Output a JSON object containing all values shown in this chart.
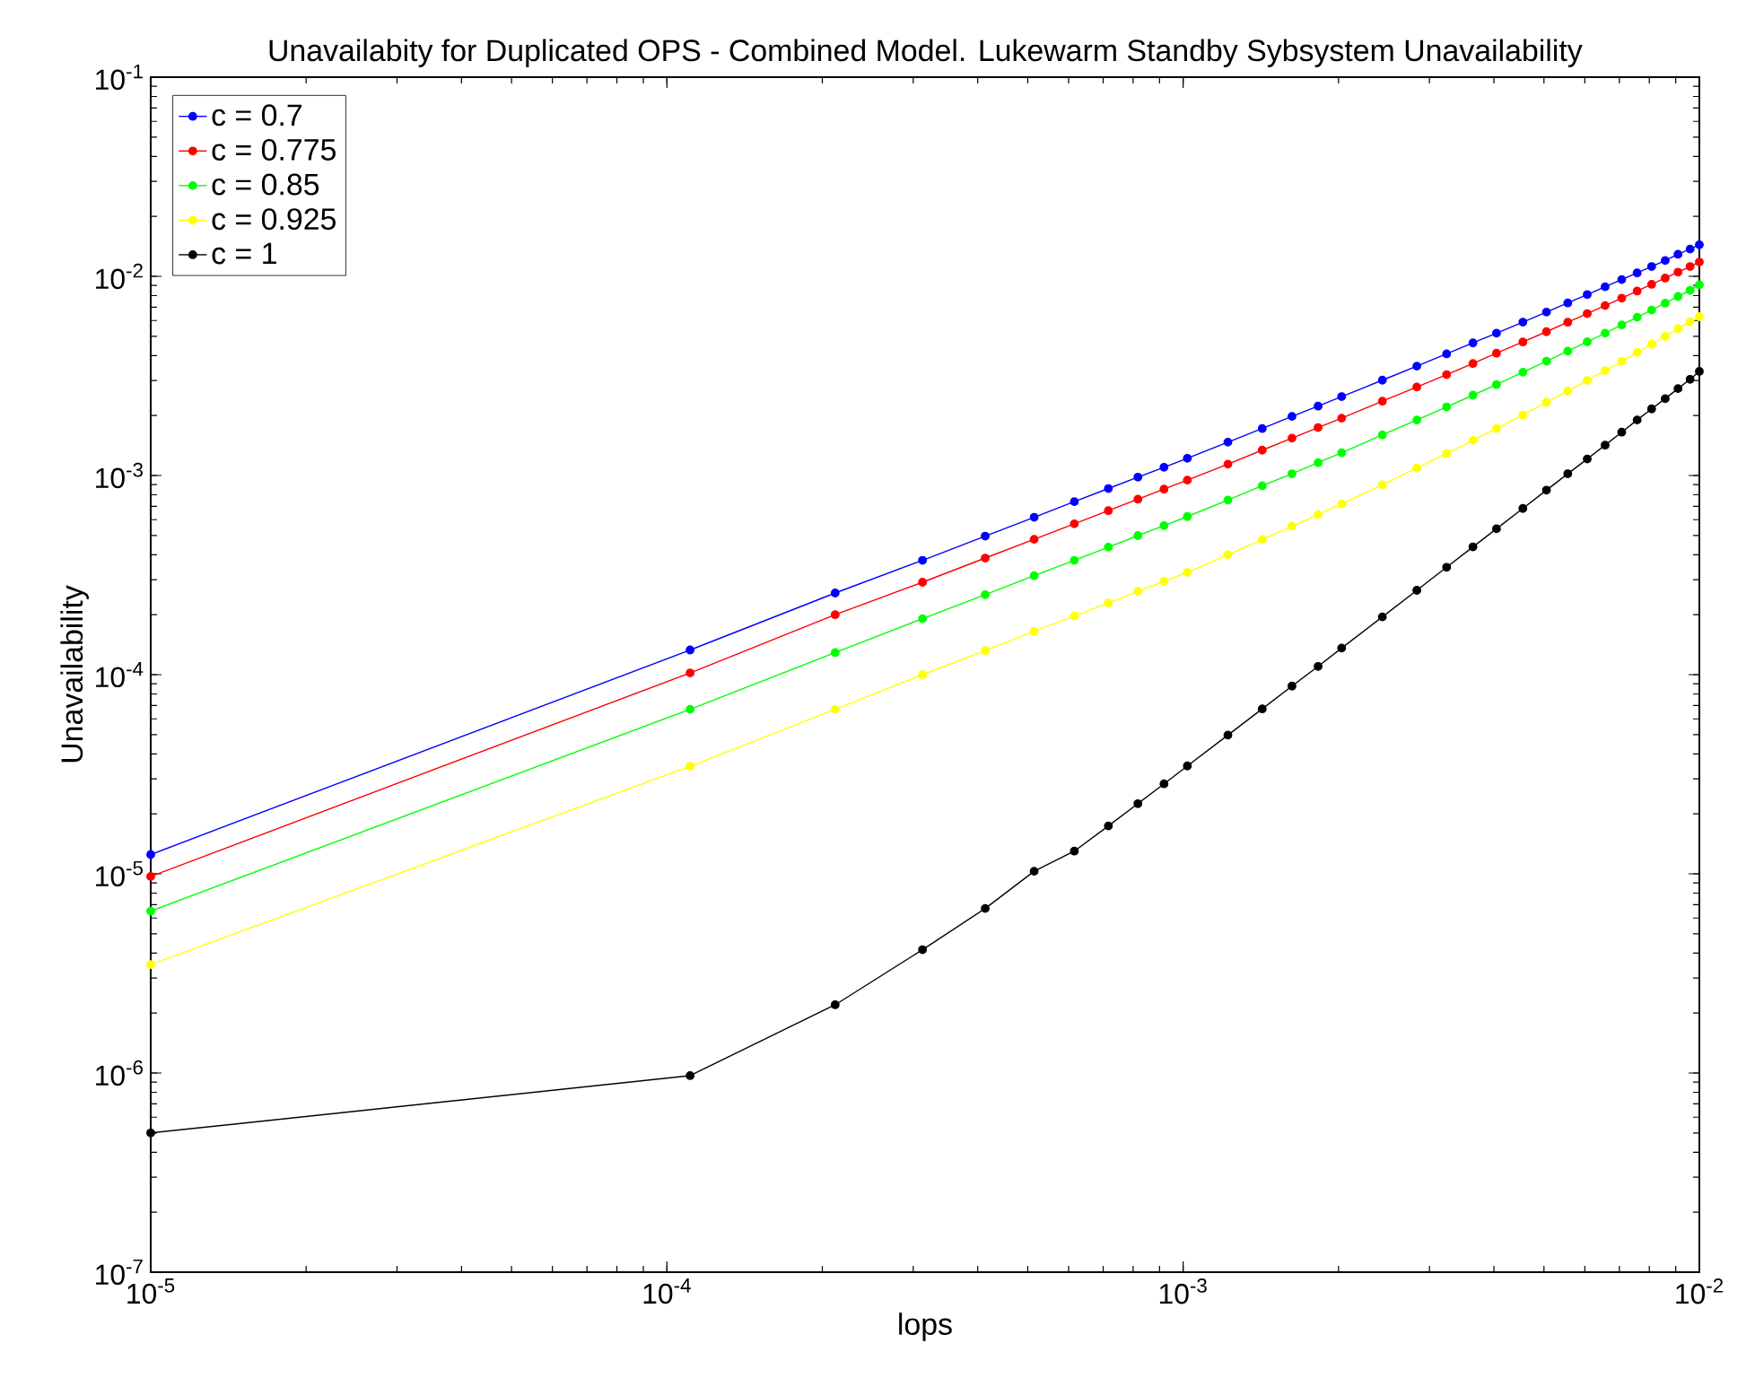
{
  "chart_data": {
    "type": "line",
    "title": "Unavailabity for Duplicated OPS - Combined Model. Lukewarm Standby Sybsystem Unavailability",
    "xlabel": "lops",
    "ylabel": "Unavailability",
    "log": "xy",
    "legend": "top left",
    "marker": "circle",
    "line_style": "solid",
    "xlim": [
      1e-05,
      0.01
    ],
    "ylim": [
      1e-07,
      0.1
    ],
    "xticks": [
      {
        "value": 1e-05,
        "label": "10$^{-5}$"
      },
      {
        "value": 0.0001,
        "label": "10$^{-4}$"
      },
      {
        "value": 0.001,
        "label": "10$^{-3}$"
      },
      {
        "value": 0.01,
        "label": "10$^{-2}$"
      }
    ],
    "yticks": [
      {
        "value": 1e-07,
        "label": "10$^{-7}$"
      },
      {
        "value": 1e-06,
        "label": "10$^{-6}$"
      },
      {
        "value": 1e-05,
        "label": "10$^{-5}$"
      },
      {
        "value": 0.0001,
        "label": "10$^{-4}$"
      },
      {
        "value": 0.001,
        "label": "10$^{-3}$"
      },
      {
        "value": 0.01,
        "label": "10$^{-2}$"
      },
      {
        "value": 0.1,
        "label": "10$^{-1}$"
      }
    ],
    "x": [
      1e-05,
      0.0001109,
      0.0002118,
      0.0003127,
      0.0004136,
      0.0005145,
      0.0006155,
      0.0007164,
      0.0008173,
      0.0009182,
      0.001019,
      0.001221,
      0.001423,
      0.001625,
      0.001826,
      0.002028,
      0.002432,
      0.002836,
      0.003239,
      0.003643,
      0.004046,
      0.004551,
      0.005056,
      0.00556,
      0.006065,
      0.006569,
      0.007074,
      0.007578,
      0.008083,
      0.008587,
      0.009092,
      0.009596,
      0.01
    ],
    "series": [
      {
        "name": "c = 0.7",
        "color": "#0000ff",
        "values": [
          1.25e-05,
          0.000133,
          0.000257,
          0.000375,
          0.000496,
          0.000617,
          0.000739,
          0.00086,
          0.000981,
          0.0011,
          0.00122,
          0.00147,
          0.00172,
          0.00198,
          0.00223,
          0.00249,
          0.00301,
          0.00354,
          0.00408,
          0.00463,
          0.00518,
          0.00589,
          0.00661,
          0.00735,
          0.0081,
          0.00886,
          0.00963,
          0.0104,
          0.0112,
          0.012,
          0.0129,
          0.0137,
          0.0144
        ]
      },
      {
        "name": "c = 0.775",
        "color": "#ff0000",
        "values": [
          9.7e-06,
          0.000102,
          0.0002,
          0.000291,
          0.000385,
          0.000478,
          0.000572,
          0.000666,
          0.00076,
          0.000854,
          0.000948,
          0.00114,
          0.00134,
          0.00154,
          0.00174,
          0.00194,
          0.00236,
          0.00278,
          0.00321,
          0.00365,
          0.00411,
          0.00468,
          0.00527,
          0.00588,
          0.0065,
          0.00713,
          0.00777,
          0.00843,
          0.00911,
          0.0098,
          0.0105,
          0.0112,
          0.0118
        ]
      },
      {
        "name": "c = 0.85",
        "color": "#00ff00",
        "values": [
          6.5e-06,
          6.7e-05,
          0.000129,
          0.000191,
          0.000252,
          0.000314,
          0.000375,
          0.000437,
          0.000499,
          0.00056,
          0.000622,
          0.000753,
          0.000888,
          0.00102,
          0.00116,
          0.0013,
          0.0016,
          0.0019,
          0.00221,
          0.00253,
          0.00286,
          0.0033,
          0.00375,
          0.00421,
          0.00469,
          0.00518,
          0.0057,
          0.00623,
          0.00677,
          0.00733,
          0.00792,
          0.00851,
          0.00906
        ]
      },
      {
        "name": "c = 0.925",
        "color": "#ffff00",
        "values": [
          3.5e-06,
          3.47e-05,
          6.7e-05,
          0.0001,
          0.000132,
          0.000165,
          0.000197,
          0.000229,
          0.000262,
          0.000294,
          0.000326,
          0.0004,
          0.000477,
          0.000556,
          0.000636,
          0.00072,
          0.000897,
          0.00109,
          0.00129,
          0.0015,
          0.00172,
          0.00201,
          0.00233,
          0.00265,
          0.003,
          0.00336,
          0.00374,
          0.00415,
          0.00456,
          0.00499,
          0.00545,
          0.00591,
          0.00627
        ]
      },
      {
        "name": "c = 1",
        "color": "#000000",
        "values": [
          5e-07,
          9.7e-07,
          2.2e-06,
          4.16e-06,
          6.7e-06,
          1.03e-05,
          1.3e-05,
          1.74e-05,
          2.25e-05,
          2.83e-05,
          3.48e-05,
          4.97e-05,
          6.73e-05,
          8.76e-05,
          0.00011,
          0.000136,
          0.000195,
          0.000265,
          0.000346,
          0.000438,
          0.00054,
          0.000683,
          0.000844,
          0.00102,
          0.00121,
          0.00142,
          0.00165,
          0.0019,
          0.00216,
          0.00243,
          0.00273,
          0.00304,
          0.00333
        ]
      }
    ]
  }
}
